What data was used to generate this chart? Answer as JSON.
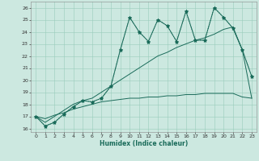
{
  "xlabel": "Humidex (Indice chaleur)",
  "bg_color": "#cce8e0",
  "grid_color": "#99ccbb",
  "line_color": "#1a6b5a",
  "xlim": [
    -0.5,
    23.5
  ],
  "ylim": [
    15.7,
    26.5
  ],
  "yticks": [
    16,
    17,
    18,
    19,
    20,
    21,
    22,
    23,
    24,
    25,
    26
  ],
  "xticks": [
    0,
    1,
    2,
    3,
    4,
    5,
    6,
    7,
    8,
    9,
    10,
    11,
    12,
    13,
    14,
    15,
    16,
    17,
    18,
    19,
    20,
    21,
    22,
    23
  ],
  "series_jagged": {
    "x": [
      0,
      1,
      2,
      3,
      4,
      5,
      6,
      7,
      8,
      9,
      10,
      11,
      12,
      13,
      14,
      15,
      16,
      17,
      18,
      19,
      20,
      21,
      22,
      23
    ],
    "y": [
      17.0,
      16.2,
      16.5,
      17.2,
      17.8,
      18.3,
      18.2,
      18.5,
      19.5,
      22.5,
      25.2,
      24.0,
      23.2,
      25.0,
      24.5,
      23.2,
      25.7,
      23.3,
      23.3,
      26.0,
      25.2,
      24.3,
      22.5,
      20.3
    ]
  },
  "series_upper_trend": {
    "x": [
      0,
      1,
      2,
      3,
      4,
      5,
      6,
      7,
      8,
      9,
      10,
      11,
      12,
      13,
      14,
      15,
      16,
      17,
      18,
      19,
      20,
      21,
      22,
      23
    ],
    "y": [
      17.0,
      16.5,
      17.0,
      17.5,
      18.0,
      18.3,
      18.5,
      19.0,
      19.5,
      20.0,
      20.5,
      21.0,
      21.5,
      22.0,
      22.3,
      22.7,
      23.0,
      23.3,
      23.5,
      23.8,
      24.2,
      24.4,
      22.5,
      18.5
    ]
  },
  "series_lower_trend": {
    "x": [
      0,
      1,
      2,
      3,
      4,
      5,
      6,
      7,
      8,
      9,
      10,
      11,
      12,
      13,
      14,
      15,
      16,
      17,
      18,
      19,
      20,
      21,
      22,
      23
    ],
    "y": [
      17.0,
      16.8,
      17.1,
      17.3,
      17.6,
      17.8,
      18.0,
      18.2,
      18.3,
      18.4,
      18.5,
      18.5,
      18.6,
      18.6,
      18.7,
      18.7,
      18.8,
      18.8,
      18.9,
      18.9,
      18.9,
      18.9,
      18.6,
      18.5
    ]
  }
}
